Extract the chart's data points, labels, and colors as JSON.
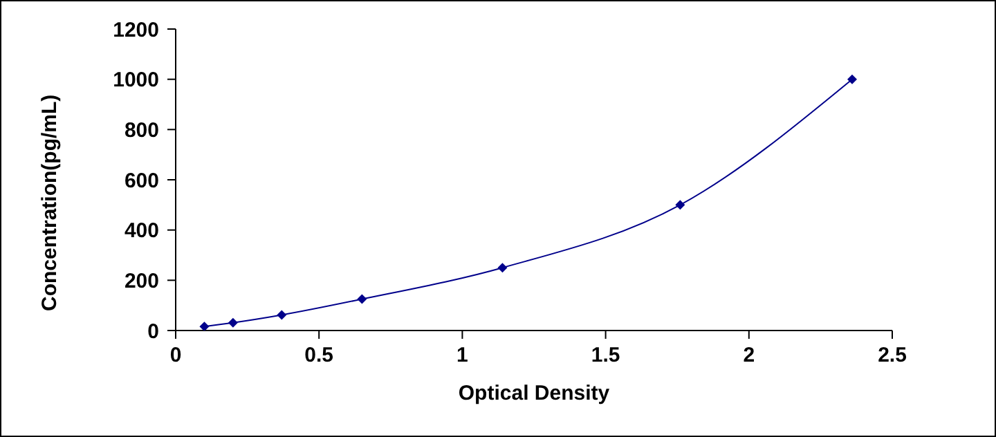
{
  "chart_data": {
    "type": "line",
    "xlabel": "Optical Density",
    "ylabel": "Concentration(pg/mL)",
    "x": [
      0.1,
      0.2,
      0.37,
      0.65,
      1.14,
      1.76,
      2.36
    ],
    "series": [
      {
        "color": "#00008b",
        "values": [
          16,
          31,
          62,
          125,
          250,
          500,
          1000
        ]
      }
    ],
    "xlim": [
      0,
      2.5
    ],
    "xticks": [
      0,
      0.5,
      1,
      1.5,
      2,
      2.5
    ],
    "ylim": [
      0,
      1200
    ],
    "yticks": [
      0,
      200,
      400,
      600,
      800,
      1000,
      1200
    ],
    "grid": false,
    "legend": false,
    "marker": "diamond",
    "line_style": "solid"
  }
}
